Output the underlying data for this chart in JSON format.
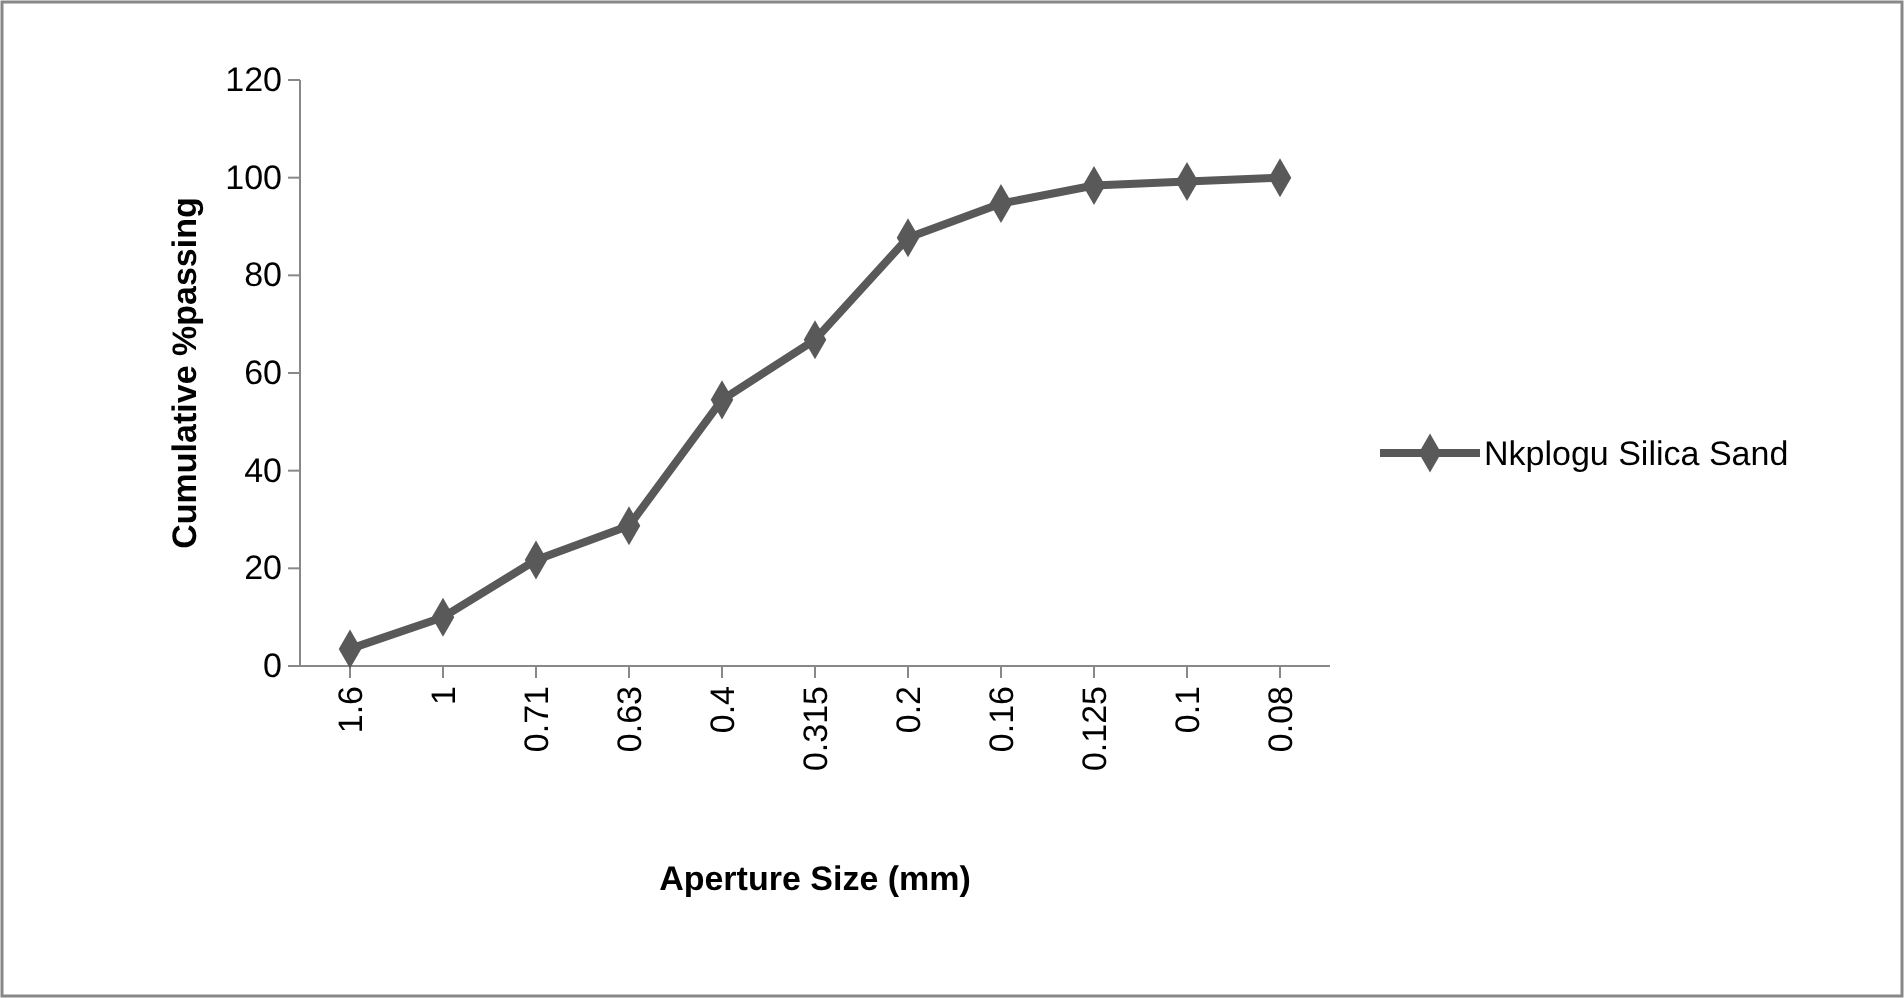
{
  "chart_data": {
    "type": "line",
    "xlabel": "Aperture Size (mm)",
    "ylabel": "Cumulative %passing",
    "categories": [
      "1.6",
      "1",
      "0.71",
      "0.63",
      "0.4",
      "0.315",
      "0.2",
      "0.16",
      "0.125",
      "0.1",
      "0.08"
    ],
    "series": [
      {
        "name": "Nkplogu Silica Sand",
        "color": "#595959",
        "values": [
          3.5,
          10,
          21.7,
          28.7,
          54.5,
          66.8,
          87.7,
          94.7,
          98.4,
          99.2,
          100
        ]
      }
    ],
    "ylim": [
      0,
      120
    ],
    "yticks": [
      0,
      20,
      40,
      60,
      80,
      100,
      120
    ],
    "marker": "diamond",
    "line_style": "solid",
    "legend": "right",
    "grid": false
  }
}
